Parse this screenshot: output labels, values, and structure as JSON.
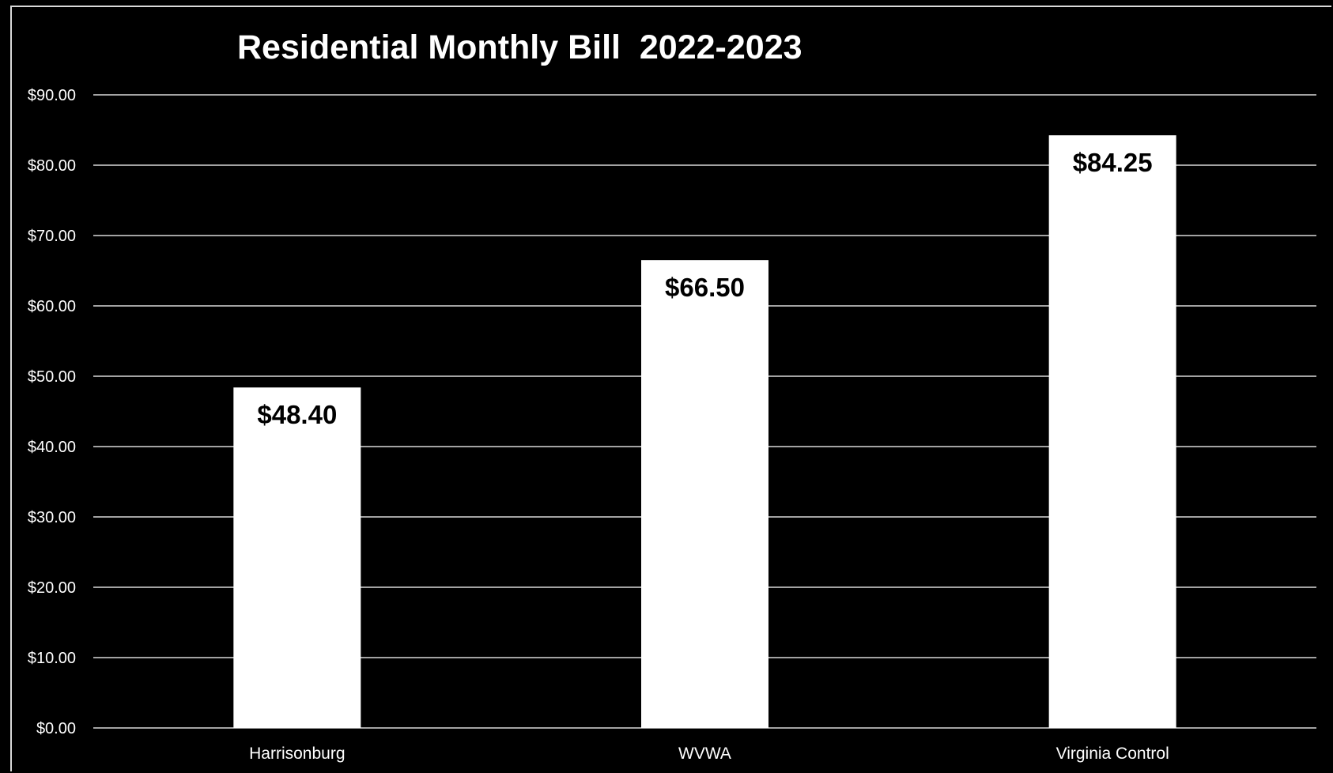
{
  "chart_data": {
    "type": "bar",
    "title": "Residential Monthly Bill  2022-2023",
    "xlabel": "",
    "ylabel": "",
    "categories": [
      "Harrisonburg",
      "WVWA",
      "Virginia Control"
    ],
    "values": [
      48.4,
      66.5,
      84.25
    ],
    "data_labels": [
      "$48.40",
      "$66.50",
      "$84.25"
    ],
    "ylim": [
      0,
      90
    ],
    "y_ticks": [
      0,
      10,
      20,
      30,
      40,
      50,
      60,
      70,
      80,
      90
    ],
    "y_tick_labels": [
      "$0.00",
      "$10.00",
      "$20.00",
      "$30.00",
      "$40.00",
      "$50.00",
      "$60.00",
      "$70.00",
      "$80.00",
      "$90.00"
    ],
    "grid": true,
    "legend": "none"
  },
  "colors": {
    "background": "#000000",
    "bars": "#ffffff",
    "gridlines": "#d9d9d9",
    "text": "#ffffff",
    "data_label": "#000000"
  }
}
